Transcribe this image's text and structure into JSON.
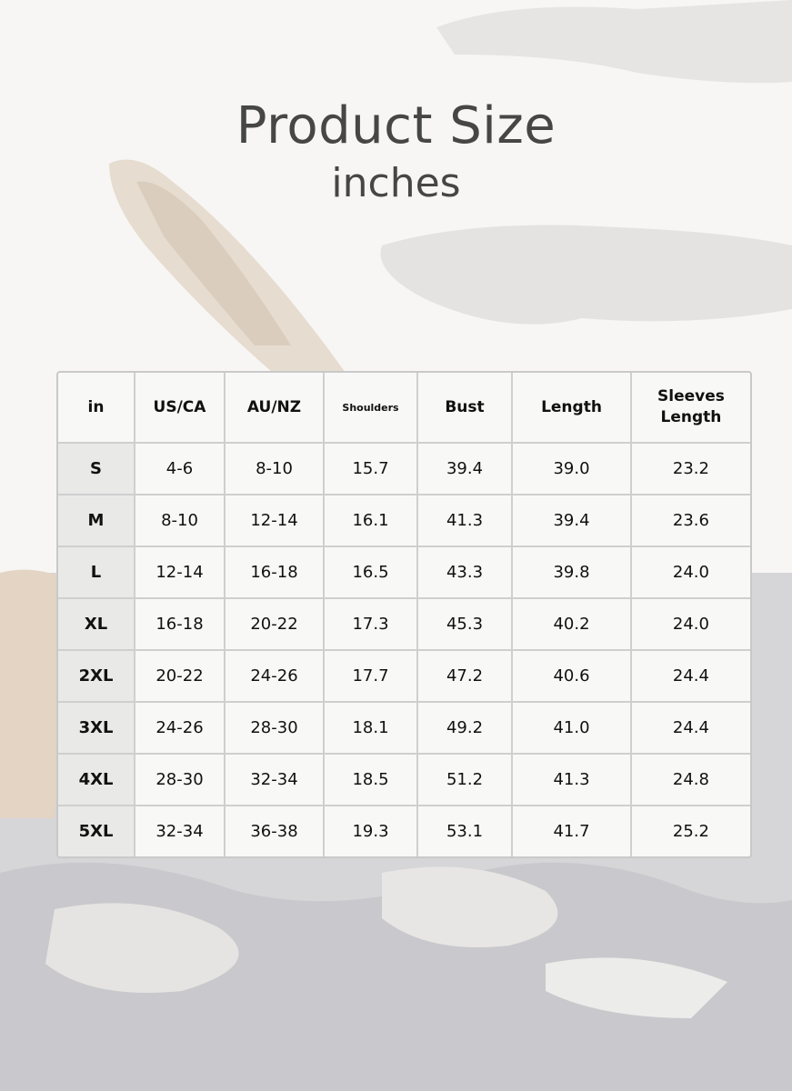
{
  "title": "Product Size",
  "subtitle": "inches",
  "table": {
    "headers": [
      "in",
      "US/CA",
      "AU/NZ",
      "Shoulders",
      "Bust",
      "Length",
      "Sleeves Length"
    ],
    "rows": [
      [
        "S",
        "4-6",
        "8-10",
        "15.7",
        "39.4",
        "39.0",
        "23.2"
      ],
      [
        "M",
        "8-10",
        "12-14",
        "16.1",
        "41.3",
        "39.4",
        "23.6"
      ],
      [
        "L",
        "12-14",
        "16-18",
        "16.5",
        "43.3",
        "39.8",
        "24.0"
      ],
      [
        "XL",
        "16-18",
        "20-22",
        "17.3",
        "45.3",
        "40.2",
        "24.0"
      ],
      [
        "2XL",
        "20-22",
        "24-26",
        "17.7",
        "47.2",
        "40.6",
        "24.4"
      ],
      [
        "3XL",
        "24-26",
        "28-30",
        "18.1",
        "49.2",
        "41.0",
        "24.4"
      ],
      [
        "4XL",
        "28-30",
        "32-34",
        "18.5",
        "51.2",
        "41.3",
        "24.8"
      ],
      [
        "5XL",
        "32-34",
        "36-38",
        "19.3",
        "53.1",
        "41.7",
        "25.2"
      ]
    ]
  }
}
